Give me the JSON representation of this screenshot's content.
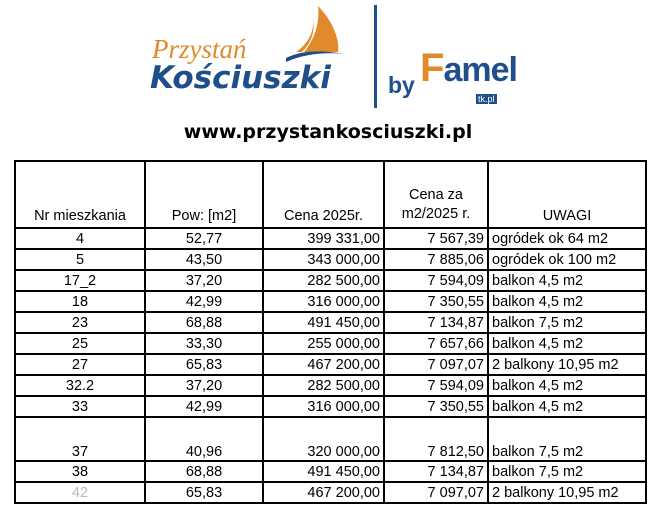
{
  "logo": {
    "line1": "Przystań",
    "line2": "Kościuszki",
    "by": "by",
    "brand": "Famel",
    "brand_suffix": "tk.pl"
  },
  "url": "www.przystankosciuszki.pl",
  "table": {
    "headers": [
      "Nr mieszkania",
      "Pow: [m2]",
      "Cena 2025r.",
      "Cena za m2/2025 r.",
      "UWAGI"
    ],
    "rows": [
      [
        "4",
        "52,77",
        "399 331,00",
        "7 567,39",
        "ogródek ok 64 m2"
      ],
      [
        "5",
        "43,50",
        "343 000,00",
        "7 885,06",
        "ogródek ok 100 m2"
      ],
      [
        "17_2",
        "37,20",
        "282 500,00",
        "7 594,09",
        "balkon 4,5 m2"
      ],
      [
        "18",
        "42,99",
        "316 000,00",
        "7 350,55",
        "balkon 4,5 m2"
      ],
      [
        "23",
        "68,88",
        "491 450,00",
        "7 134,87",
        "balkon 7,5 m2"
      ],
      [
        "25",
        "33,30",
        "255 000,00",
        "7 657,66",
        "balkon 4,5 m2"
      ],
      [
        "27",
        "65,83",
        "467 200,00",
        "7 097,07",
        "2 balkony 10,95 m2"
      ],
      [
        "32.2",
        "37,20",
        "282 500,00",
        "7 594,09",
        "balkon 4,5 m2"
      ],
      [
        "33",
        "42,99",
        "316 000,00",
        "7 350,55",
        "balkon 4,5 m2"
      ],
      [
        "37",
        "40,96",
        "320 000,00",
        "7 812,50",
        "balkon 7,5 m2"
      ],
      [
        "38",
        "68,88",
        "491 450,00",
        "7 134,87",
        "balkon 7,5 m2"
      ],
      [
        "42",
        "65,83",
        "467 200,00",
        "7 097,07",
        "2 balkony 10,95 m2"
      ]
    ]
  }
}
